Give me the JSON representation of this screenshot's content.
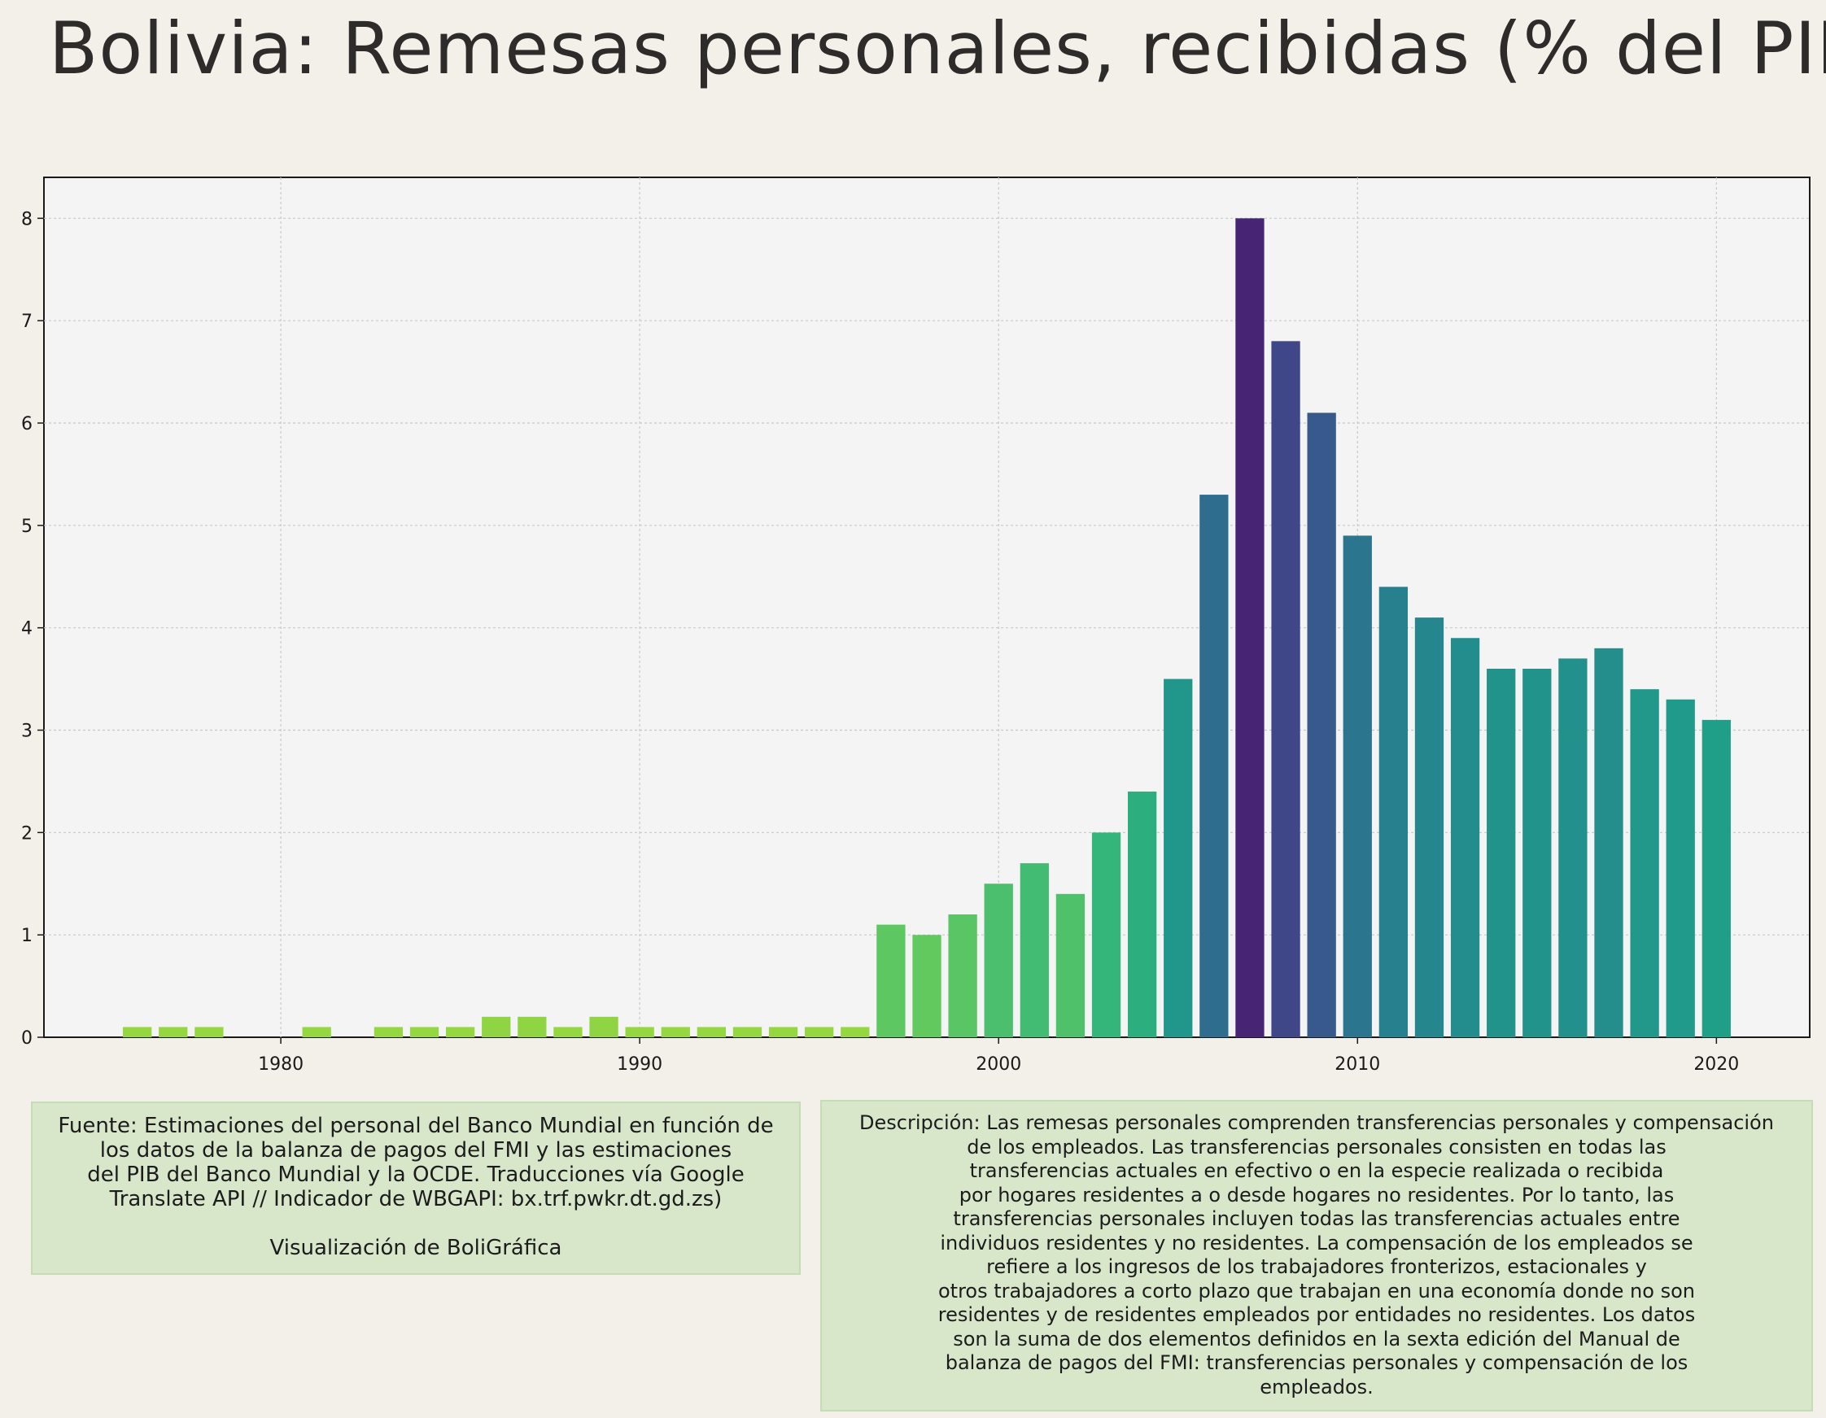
{
  "title": "Bolivia:  Remesas personales, recibidas (% del PIB)",
  "chart_data": {
    "type": "bar",
    "title": "Bolivia:  Remesas personales, recibidas (% del PIB)",
    "xlabel": "",
    "ylabel": "",
    "x": [
      1976,
      1977,
      1978,
      1979,
      1980,
      1981,
      1982,
      1983,
      1984,
      1985,
      1986,
      1987,
      1988,
      1989,
      1990,
      1991,
      1992,
      1993,
      1994,
      1995,
      1996,
      1997,
      1998,
      1999,
      2000,
      2001,
      2002,
      2003,
      2004,
      2005,
      2006,
      2007,
      2008,
      2009,
      2010,
      2011,
      2012,
      2013,
      2014,
      2015,
      2016,
      2017,
      2018,
      2019,
      2020
    ],
    "values": [
      0.1,
      0.1,
      0.1,
      0,
      0,
      0.1,
      0,
      0.1,
      0.1,
      0.1,
      0.2,
      0.2,
      0.1,
      0.2,
      0.1,
      0.1,
      0.1,
      0.1,
      0.1,
      0.1,
      0.1,
      1.1,
      1.0,
      1.2,
      1.5,
      1.7,
      1.4,
      2.0,
      2.4,
      3.5,
      5.3,
      8.0,
      6.8,
      6.1,
      4.9,
      4.4,
      4.1,
      3.9,
      3.6,
      3.6,
      3.7,
      3.8,
      3.4,
      3.3,
      3.1
    ],
    "xlim": [
      1973.4,
      2022.6
    ],
    "ylim": [
      0,
      8.4
    ],
    "xticks": [
      1980,
      1990,
      2000,
      2010,
      2020
    ],
    "yticks": [
      0,
      1,
      2,
      3,
      4,
      5,
      6,
      7,
      8
    ],
    "grid": true,
    "colormap": "viridis"
  },
  "source": {
    "lines": [
      "Fuente: Estimaciones del personal del Banco Mundial en función de",
      "los datos de la balanza de pagos del FMI y las estimaciones",
      "del PIB del Banco Mundial y la OCDE. Traducciones vía Google",
      "Translate API // Indicador de WBGAPI: bx.trf.pwkr.dt.gd.zs)"
    ],
    "credit": "Visualización de BoliGráfica"
  },
  "description": {
    "lines": [
      "Descripción: Las remesas personales comprenden transferencias personales y compensación",
      "de los empleados. Las transferencias personales consisten en todas las",
      "transferencias actuales en efectivo o en la especie realizada o recibida",
      "por hogares residentes a o desde hogares no residentes. Por lo tanto, las",
      "transferencias personales incluyen todas las transferencias actuales entre",
      "individuos residentes y no residentes. La compensación de los empleados se",
      "refiere a los ingresos de los trabajadores fronterizos, estacionales y",
      "otros trabajadores a corto plazo que trabajan en una economía donde no son",
      "residentes y de residentes empleados por entidades no residentes. Los datos",
      "son la suma de dos elementos definidos en la sexta edición del Manual de",
      "balanza de pagos del FMI: transferencias personales y compensación de los",
      "empleados."
    ]
  },
  "colors": {
    "background": "#f3efe9",
    "plot_background": "#f4f4f4",
    "box_background": "#d8e6ca",
    "text": "#2e2c2b"
  }
}
